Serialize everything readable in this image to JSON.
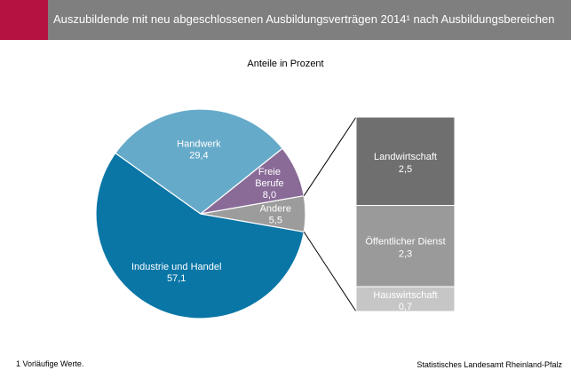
{
  "header": {
    "title": "Auszubildende mit neu abgeschlossenen Ausbildungsverträgen 2014¹ nach Ausbildungsbereichen",
    "accent_color": "#b5123f",
    "bar_color": "#7f7f7f"
  },
  "chart_data": [
    {
      "type": "pie",
      "subtitle": "Anteile in Prozent",
      "slices": [
        {
          "name": "Industrie und Handel",
          "value": 57.1,
          "value_label": "57,1",
          "color": "#0a76a6"
        },
        {
          "name": "Handwerk",
          "value": 29.4,
          "value_label": "29,4",
          "color": "#66aac9"
        },
        {
          "name": "Freie Berufe",
          "name_lines": [
            "Freie",
            "Berufe"
          ],
          "value": 8.0,
          "value_label": "8,0",
          "color": "#8a6b98"
        },
        {
          "name": "Andere",
          "value": 5.5,
          "value_label": "5,5",
          "color": "#9c9c9c"
        }
      ]
    },
    {
      "type": "bar",
      "stacked": true,
      "breakdown_of": "Andere",
      "segments": [
        {
          "name": "Landwirtschaft",
          "value": 2.5,
          "value_label": "2,5",
          "color": "#6f6f6f"
        },
        {
          "name": "Öffentlicher Dienst",
          "value": 2.3,
          "value_label": "2,3",
          "color": "#9a9a9a"
        },
        {
          "name": "Hauswirtschaft",
          "value": 0.7,
          "value_label": "0,7",
          "color": "#c6c6c6"
        }
      ]
    }
  ],
  "footnote": "1 Vorläufige Werte.",
  "source": "Statistisches Landesamt Rheinland-Pfalz"
}
